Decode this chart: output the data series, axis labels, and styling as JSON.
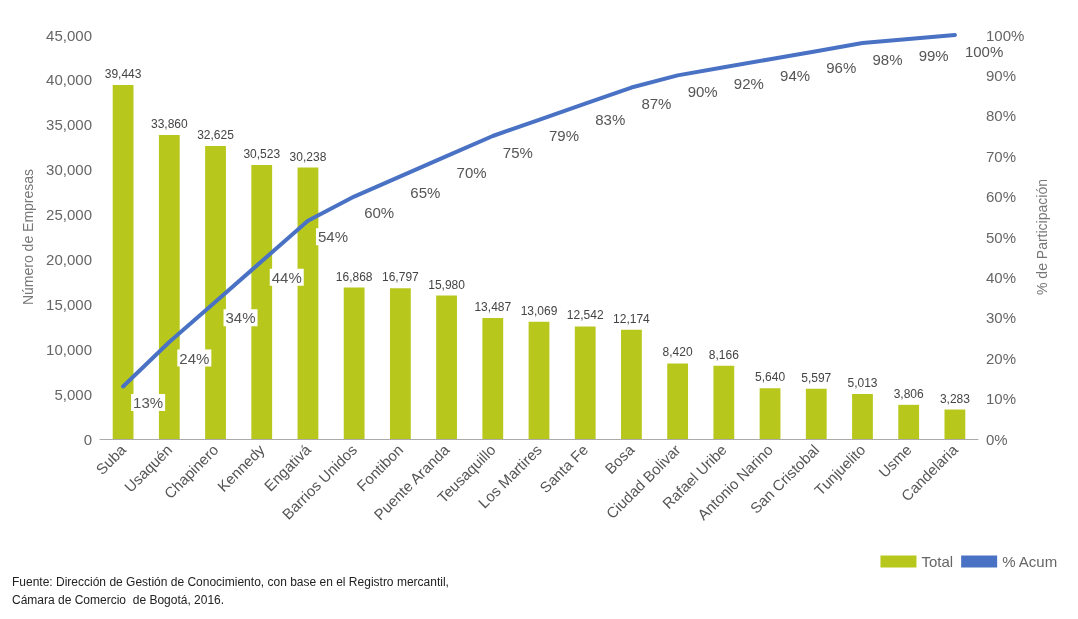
{
  "chart_data": {
    "type": "bar",
    "categories": [
      "Suba",
      "Usaquén",
      "Chapinero",
      "Kennedy",
      "Engativá",
      "Barrios Unidos",
      "Fontibon",
      "Puente Aranda",
      "Teusaquillo",
      "Los Martires",
      "Santa Fe",
      "Bosa",
      "Ciudad Bolivar",
      "Rafael Uribe",
      "Antonio Narino",
      "San Cristobal",
      "Tunjuelito",
      "Usme",
      "Candelaria"
    ],
    "series": [
      {
        "name": "Total",
        "color": "#b8c71c",
        "values": [
          39443,
          33860,
          32625,
          30523,
          30238,
          16868,
          16797,
          15980,
          13487,
          13069,
          12542,
          12174,
          8420,
          8166,
          5640,
          5597,
          5013,
          3806,
          3283
        ],
        "value_labels": [
          "39,443",
          "33,860",
          "32,625",
          "30,523",
          "30,238",
          "16,868",
          "16,797",
          "15,980",
          "13,487",
          "13,069",
          "12,542",
          "12,174",
          "8,420",
          "8,166",
          "5,640",
          "5,597",
          "5,013",
          "3,806",
          "3,283"
        ]
      },
      {
        "name": "% Acum",
        "type": "line",
        "axis": "y2",
        "color": "#4a72c4",
        "values": [
          13,
          24,
          34,
          44,
          54,
          60,
          65,
          70,
          75,
          79,
          83,
          87,
          90,
          92,
          94,
          96,
          98,
          99,
          100
        ],
        "value_labels": [
          "13%",
          "24%",
          "34%",
          "44%",
          "54%",
          "60%",
          "65%",
          "70%",
          "75%",
          "79%",
          "83%",
          "87%",
          "90%",
          "92%",
          "94%",
          "96%",
          "98%",
          "99%",
          "100%"
        ]
      }
    ],
    "ylabel": "Número de Empresas",
    "y2label": "% de Participación",
    "ylim": [
      0,
      45000
    ],
    "yticks": [
      {
        "value": 0,
        "label": "0"
      },
      {
        "value": 5000,
        "label": "5,000"
      },
      {
        "value": 10000,
        "label": "10,000"
      },
      {
        "value": 15000,
        "label": "15,000"
      },
      {
        "value": 20000,
        "label": "20,000"
      },
      {
        "value": 25000,
        "label": "25,000"
      },
      {
        "value": 30000,
        "label": "30,000"
      },
      {
        "value": 35000,
        "label": "35,000"
      },
      {
        "value": 40000,
        "label": "40,000"
      },
      {
        "value": 45000,
        "label": "45,000"
      }
    ],
    "y2lim": [
      0,
      100
    ],
    "y2ticks": [
      {
        "value": 0,
        "label": "0%"
      },
      {
        "value": 10,
        "label": "10%"
      },
      {
        "value": 20,
        "label": "20%"
      },
      {
        "value": 30,
        "label": "30%"
      },
      {
        "value": 40,
        "label": "40%"
      },
      {
        "value": 50,
        "label": "50%"
      },
      {
        "value": 60,
        "label": "60%"
      },
      {
        "value": 70,
        "label": "70%"
      },
      {
        "value": 80,
        "label": "80%"
      },
      {
        "value": 90,
        "label": "90%"
      },
      {
        "value": 100,
        "label": "100%"
      }
    ],
    "marker": "none",
    "line_style": "solid",
    "grid": false,
    "legend": "bottom right",
    "annotations": [
      "Fuente: Dirección de Gestión de Conocimiento, con base en el Registro mercantil,",
      "Cámara de Comercio  de Bogotá, 2016."
    ]
  }
}
